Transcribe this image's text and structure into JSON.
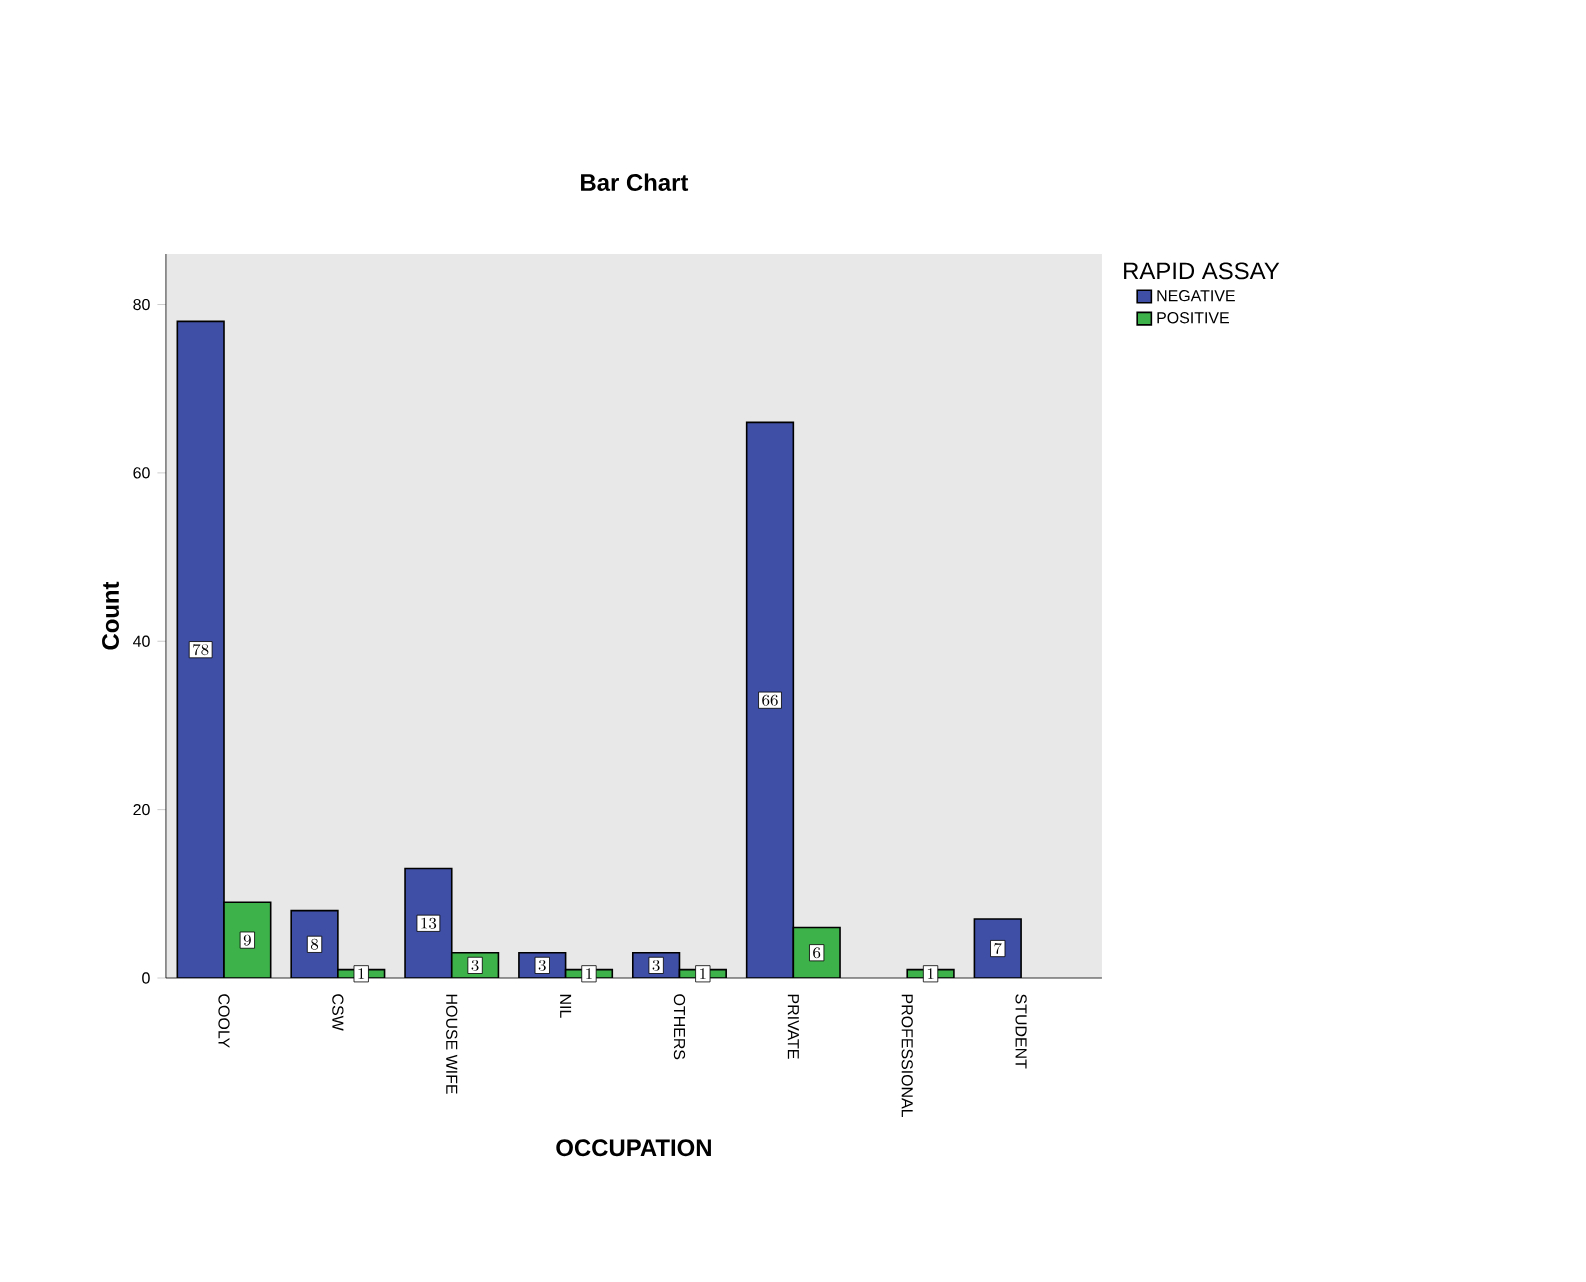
{
  "chart_data": {
    "type": "bar",
    "title": "Bar Chart",
    "xlabel": "OCCUPATION",
    "ylabel": "Count",
    "legend_title": "RAPID ASSAY",
    "categories": [
      "COOLY",
      "CSW",
      "HOUSE WIFE",
      "NIL",
      "OTHERS",
      "PRIVATE",
      "PROFESSIONAL",
      "STUDENT"
    ],
    "series": [
      {
        "name": "NEGATIVE",
        "color": "#3f4fa5",
        "values": [
          78,
          8,
          13,
          3,
          3,
          66,
          null,
          7
        ]
      },
      {
        "name": "POSITIVE",
        "color": "#3db14a",
        "values": [
          9,
          1,
          3,
          1,
          1,
          6,
          1,
          null
        ]
      }
    ],
    "ylim": [
      0,
      86
    ],
    "yticks": [
      0,
      20,
      40,
      60,
      80
    ],
    "data_labels": true,
    "legend": "top right",
    "grid": false
  }
}
